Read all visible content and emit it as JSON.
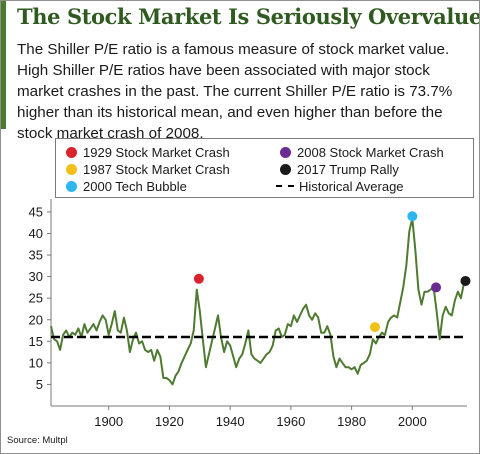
{
  "header": {
    "title": "The Stock Market Is Seriously Overvalued",
    "description": "The Shiller P/E ratio is a famous measure of stock market value. High Shiller P/E ratios have been associated with major stock market crashes in the past. The current Shiller P/E ratio is 73.7% higher than its historical mean, and even higher than before the stock market crash of 2008."
  },
  "colors": {
    "accent": "#4a7a2b",
    "title": "#2f5b21",
    "line": "#4f7a32",
    "average": "#000000",
    "crash_1929": "#d9232e",
    "crash_1987": "#f2c018",
    "bubble_2000": "#2eb6f0",
    "crash_2008": "#6a2c91",
    "rally_2017": "#1a1a1a"
  },
  "legend": {
    "items": [
      {
        "label": "1929 Stock Market Crash",
        "color": "#d9232e",
        "icon": "dot"
      },
      {
        "label": "2008 Stock Market Crash",
        "color": "#6a2c91",
        "icon": "dot"
      },
      {
        "label": "1987 Stock Market Crash",
        "color": "#f2c018",
        "icon": "dot"
      },
      {
        "label": "2017 Trump Rally",
        "color": "#1a1a1a",
        "icon": "dot"
      },
      {
        "label": "2000 Tech Bubble",
        "color": "#2eb6f0",
        "icon": "dot"
      },
      {
        "label": "Historical Average",
        "color": "#000000",
        "icon": "dashed-line"
      }
    ]
  },
  "source": "Source: Multpl",
  "chart_data": {
    "type": "line",
    "title": "",
    "xlabel": "",
    "ylabel": "",
    "xlim": [
      1881,
      2018
    ],
    "ylim": [
      0,
      48
    ],
    "x_ticks": [
      1900,
      1920,
      1940,
      1960,
      1980,
      2000
    ],
    "y_ticks": [
      5,
      10,
      15,
      20,
      25,
      30,
      35,
      40,
      45
    ],
    "grid": false,
    "legend_position": "top",
    "series": [
      {
        "name": "Shiller P/E",
        "x": [
          1881,
          1882,
          1883,
          1884,
          1885,
          1886,
          1887,
          1888,
          1889,
          1890,
          1891,
          1892,
          1893,
          1894,
          1895,
          1896,
          1897,
          1898,
          1899,
          1900,
          1901,
          1902,
          1903,
          1904,
          1905,
          1906,
          1907,
          1908,
          1909,
          1910,
          1911,
          1912,
          1913,
          1914,
          1915,
          1916,
          1917,
          1918,
          1919,
          1920,
          1921,
          1922,
          1923,
          1924,
          1925,
          1926,
          1927,
          1928,
          1929,
          1930,
          1931,
          1932,
          1933,
          1934,
          1935,
          1936,
          1937,
          1938,
          1939,
          1940,
          1941,
          1942,
          1943,
          1944,
          1945,
          1946,
          1947,
          1948,
          1949,
          1950,
          1951,
          1952,
          1953,
          1954,
          1955,
          1956,
          1957,
          1958,
          1959,
          1960,
          1961,
          1962,
          1963,
          1964,
          1965,
          1966,
          1967,
          1968,
          1969,
          1970,
          1971,
          1972,
          1973,
          1974,
          1975,
          1976,
          1977,
          1978,
          1979,
          1980,
          1981,
          1982,
          1983,
          1984,
          1985,
          1986,
          1987,
          1988,
          1989,
          1990,
          1991,
          1992,
          1993,
          1994,
          1995,
          1996,
          1997,
          1998,
          1999,
          2000,
          2001,
          2002,
          2003,
          2004,
          2005,
          2006,
          2007,
          2008,
          2009,
          2010,
          2011,
          2012,
          2013,
          2014,
          2015,
          2016,
          2017
        ],
        "values": [
          18.5,
          15.5,
          15.0,
          13.0,
          16.5,
          17.5,
          16.0,
          17.0,
          16.5,
          18.0,
          16.0,
          19.0,
          17.0,
          18.0,
          19.0,
          17.5,
          19.5,
          21.0,
          20.0,
          16.5,
          19.0,
          22.0,
          17.5,
          17.0,
          20.5,
          17.5,
          12.5,
          15.5,
          17.0,
          14.5,
          15.0,
          13.0,
          12.5,
          13.0,
          10.5,
          13.0,
          11.5,
          6.5,
          6.5,
          6.0,
          5.0,
          7.0,
          8.0,
          10.0,
          11.5,
          13.0,
          14.5,
          17.5,
          27.0,
          22.0,
          15.5,
          9.0,
          12.0,
          15.0,
          18.0,
          21.0,
          16.0,
          12.5,
          15.0,
          14.0,
          11.5,
          9.0,
          11.0,
          12.0,
          14.5,
          17.5,
          12.0,
          11.0,
          10.5,
          10.0,
          11.0,
          12.0,
          12.5,
          14.0,
          17.5,
          18.0,
          16.0,
          16.5,
          19.0,
          18.5,
          21.0,
          19.5,
          21.0,
          22.5,
          23.5,
          21.0,
          20.0,
          21.5,
          20.5,
          17.0,
          17.0,
          18.5,
          16.5,
          11.5,
          9.0,
          11.0,
          10.0,
          9.0,
          9.0,
          8.5,
          9.0,
          7.5,
          9.5,
          10.0,
          10.5,
          12.0,
          15.5,
          14.5,
          16.0,
          17.0,
          16.5,
          19.5,
          20.5,
          21.0,
          20.5,
          24.0,
          27.5,
          32.5,
          40.5,
          43.5,
          36.0,
          27.0,
          23.5,
          26.5,
          26.5,
          27.0,
          27.5,
          22.0,
          15.5,
          21.0,
          23.0,
          21.5,
          21.0,
          24.5,
          26.5,
          25.0,
          28.5
        ]
      },
      {
        "name": "Historical Average",
        "values": [
          16.0
        ]
      }
    ],
    "events": [
      {
        "label": "1929 Stock Market Crash",
        "x": 1929.7,
        "y": 29.5
      },
      {
        "label": "1987 Stock Market Crash",
        "x": 1987.7,
        "y": 18.3
      },
      {
        "label": "2000 Tech Bubble",
        "x": 2000.0,
        "y": 44.0
      },
      {
        "label": "2008 Stock Market Crash",
        "x": 2007.8,
        "y": 27.5
      },
      {
        "label": "2017 Trump Rally",
        "x": 2017.5,
        "y": 29.0
      }
    ]
  }
}
